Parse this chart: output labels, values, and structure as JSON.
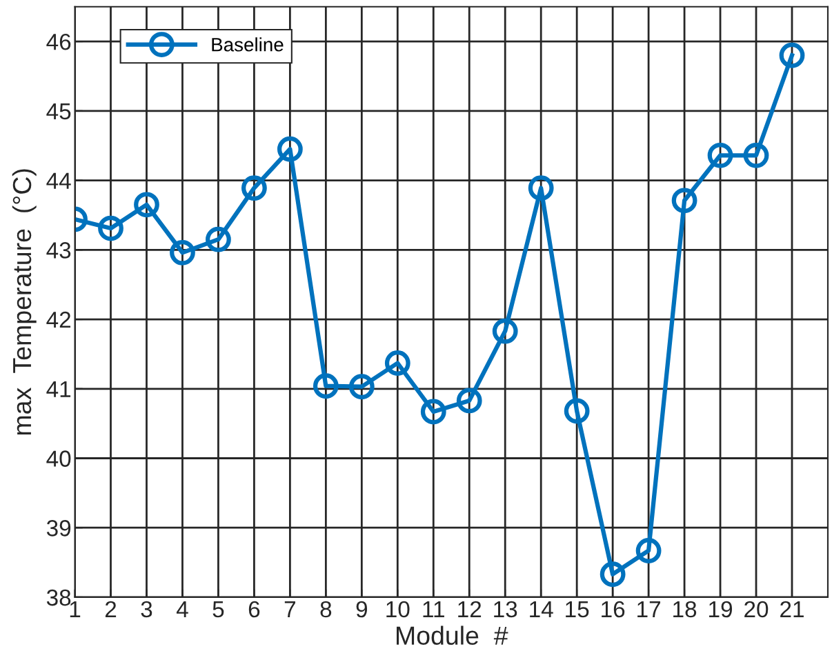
{
  "chart_data": {
    "type": "line",
    "xlabel": "Module  #",
    "ylabel": "max  Temperature  (°C)",
    "x": [
      1,
      2,
      3,
      4,
      5,
      6,
      7,
      8,
      9,
      10,
      11,
      12,
      13,
      14,
      15,
      16,
      17,
      18,
      19,
      20,
      21
    ],
    "series": [
      {
        "name": "Baseline",
        "color": "#0072bd",
        "values": [
          43.44,
          43.31,
          43.65,
          42.96,
          43.15,
          43.89,
          44.45,
          41.04,
          41.03,
          41.37,
          40.67,
          40.83,
          41.83,
          43.89,
          40.68,
          38.33,
          38.67,
          43.71,
          44.36,
          44.36,
          45.8
        ]
      }
    ],
    "xlim": [
      1,
      22
    ],
    "xticks": [
      1,
      2,
      3,
      4,
      5,
      6,
      7,
      8,
      9,
      10,
      11,
      12,
      13,
      14,
      15,
      16,
      17,
      18,
      19,
      20,
      21
    ],
    "ylim": [
      38,
      46.5
    ],
    "yticks": [
      38,
      39,
      40,
      41,
      42,
      43,
      44,
      45,
      46
    ],
    "grid": true,
    "legend": "top left",
    "marker": "circle",
    "line_style": "solid"
  }
}
